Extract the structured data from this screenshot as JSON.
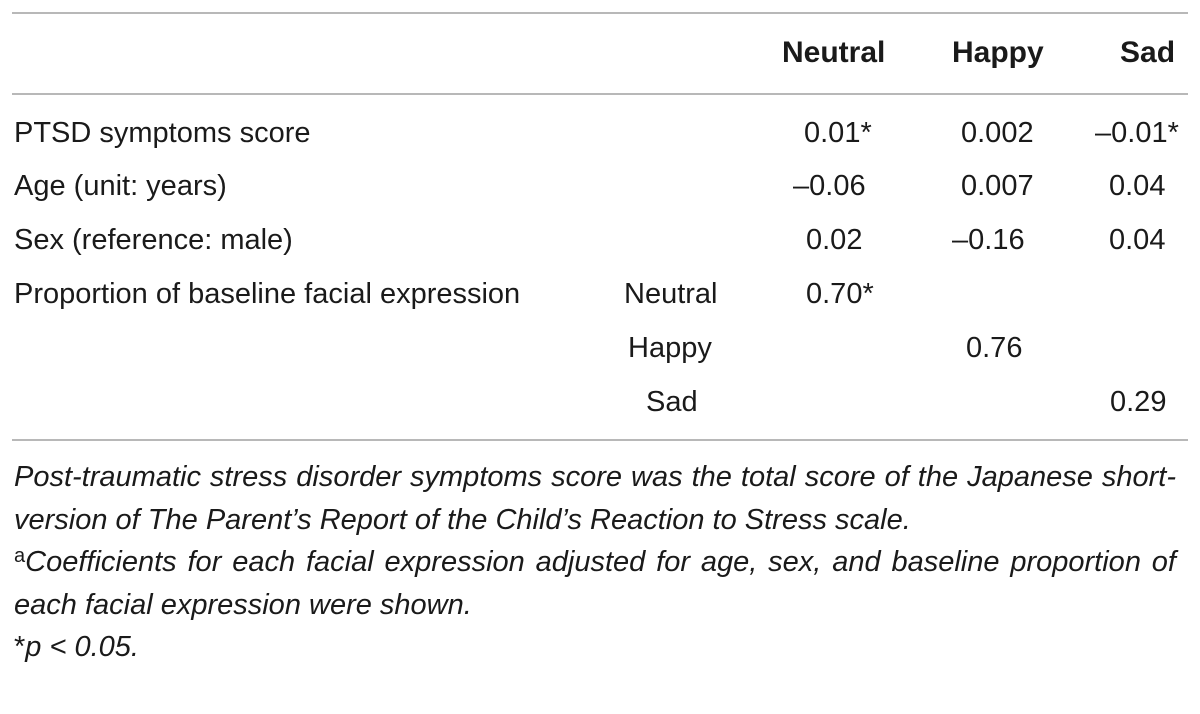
{
  "table": {
    "columns": [
      "Neutral",
      "Happy",
      "Sad"
    ],
    "rows": [
      {
        "label": "PTSD symptoms score",
        "sublabel": "",
        "values": [
          "0.01*",
          "0.002",
          "–0.01*"
        ]
      },
      {
        "label": "Age (unit: years)",
        "sublabel": "",
        "values": [
          "–0.06",
          "0.007",
          "0.04"
        ]
      },
      {
        "label": "Sex (reference: male)",
        "sublabel": "",
        "values": [
          "0.02",
          "–0.16",
          "0.04"
        ]
      },
      {
        "label": "Proportion of baseline facial expression",
        "sublabel": "Neutral",
        "values": [
          "0.70*",
          "",
          ""
        ]
      },
      {
        "label": "",
        "sublabel": "Happy",
        "values": [
          "",
          "0.76",
          ""
        ]
      },
      {
        "label": "",
        "sublabel": "Sad",
        "values": [
          "",
          "",
          "0.29"
        ]
      }
    ]
  },
  "footnotes": {
    "ptsd_note": "Post-traumatic stress disorder symptoms score was the total score of the Japanese short-version of The Parent’s Report of the Child’s Reaction to Stress scale.",
    "a_marker": "a",
    "a_note": "Coefficients for each facial expression adjusted for age, sex, and baseline proportion of each facial expression were shown.",
    "p_marker": "*",
    "p_note": "p < 0.05."
  }
}
